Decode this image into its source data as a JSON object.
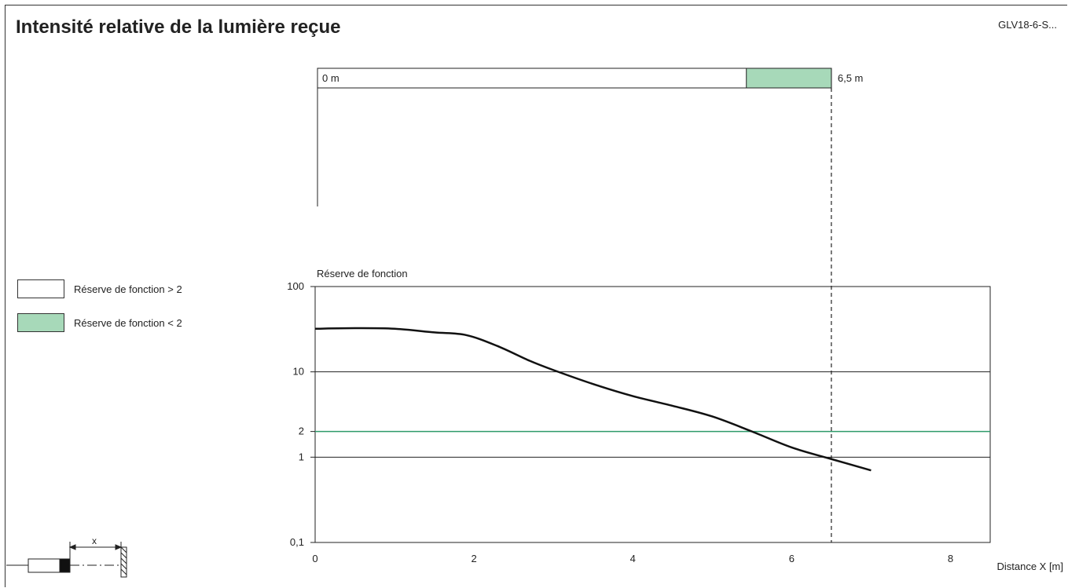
{
  "title": "Intensité relative de la lumière reçue",
  "product_code": "GLV18-6-S...",
  "legend": [
    {
      "label": "Réserve de fonction > 2",
      "color": "#ffffff"
    },
    {
      "label": "Réserve de fonction < 2",
      "color": "#a7d9b9"
    }
  ],
  "range_bar": {
    "start_label": "0 m",
    "end_label": "6,5 m",
    "max_distance": 6.5,
    "reserve_below_2_from": 5.4,
    "fill_color": "#a7d9b9"
  },
  "colors": {
    "threshold_line": "#2e9a6a",
    "curve": "#111111",
    "grid": "#222222"
  },
  "chart_data": {
    "type": "line",
    "ylabel": "Réserve de fonction",
    "xlabel": "Distance X [m]",
    "y_scale": "log",
    "xlim": [
      0,
      8.5
    ],
    "ylim": [
      0.1,
      100
    ],
    "x_ticks": [
      0,
      2,
      4,
      6,
      8
    ],
    "x_tick_labels": [
      "0",
      "2",
      "4",
      "6",
      "8"
    ],
    "y_ticks": [
      100,
      10,
      2,
      1,
      0.1
    ],
    "y_tick_labels": [
      "100",
      "10",
      "2",
      "1",
      "0,1"
    ],
    "gridlines_y": [
      10,
      1
    ],
    "threshold_y": 2,
    "reference_x": 6.5,
    "series": [
      {
        "x": [
          0,
          0.5,
          1.0,
          1.5,
          1.9,
          2.3,
          2.7,
          3.0,
          3.5,
          4.0,
          4.5,
          5.0,
          5.5,
          6.0,
          6.5,
          7.0
        ],
        "y": [
          32,
          32.5,
          32,
          29,
          27,
          20,
          13.5,
          10.5,
          7.2,
          5.2,
          4.0,
          3.0,
          2.0,
          1.3,
          0.95,
          0.7
        ]
      }
    ]
  }
}
